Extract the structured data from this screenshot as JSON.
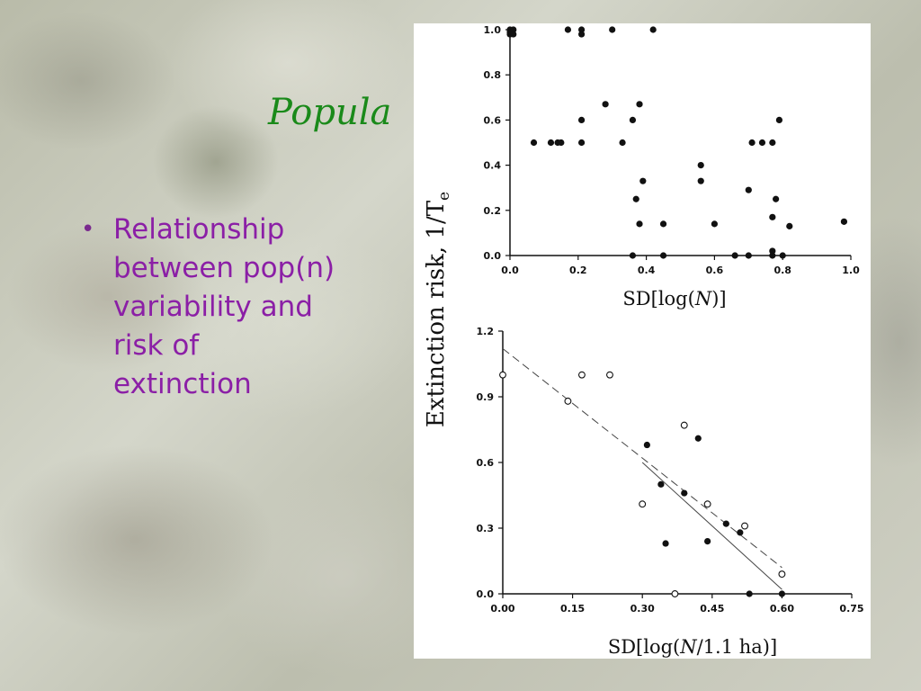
{
  "slide": {
    "title": "Popula",
    "bullet": [
      "Relationship",
      "between pop(n)",
      "variability and",
      "risk of",
      "extinction"
    ],
    "bullet_glyph": "•",
    "title_color": "#1a8a1a",
    "text_color": "#8b1fa6"
  },
  "chart_data": [
    {
      "type": "scatter",
      "xlabel": "SD[log(N)]",
      "ylabel": "Extinction risk, 1/Te",
      "xlim": [
        0.0,
        1.0
      ],
      "ylim": [
        0.0,
        1.0
      ],
      "xticks": [
        "0.0",
        "0.2",
        "0.4",
        "0.6",
        "0.8",
        "1.0"
      ],
      "yticks": [
        "0.0",
        "0.2",
        "0.4",
        "0.6",
        "0.8",
        "1.0"
      ],
      "series": [
        {
          "marker": "filled",
          "points": [
            [
              0.0,
              1.0
            ],
            [
              0.0,
              0.99
            ],
            [
              0.0,
              0.98
            ],
            [
              0.01,
              1.0
            ],
            [
              0.01,
              0.98
            ],
            [
              0.17,
              1.0
            ],
            [
              0.21,
              1.0
            ],
            [
              0.21,
              0.98
            ],
            [
              0.3,
              1.0
            ],
            [
              0.42,
              1.0
            ],
            [
              0.07,
              0.5
            ],
            [
              0.12,
              0.5
            ],
            [
              0.14,
              0.5
            ],
            [
              0.15,
              0.5
            ],
            [
              0.21,
              0.5
            ],
            [
              0.33,
              0.5
            ],
            [
              0.21,
              0.6
            ],
            [
              0.36,
              0.6
            ],
            [
              0.28,
              0.67
            ],
            [
              0.38,
              0.67
            ],
            [
              0.39,
              0.33
            ],
            [
              0.37,
              0.25
            ],
            [
              0.38,
              0.14
            ],
            [
              0.45,
              0.14
            ],
            [
              0.36,
              0.0
            ],
            [
              0.45,
              0.0
            ],
            [
              0.56,
              0.4
            ],
            [
              0.56,
              0.33
            ],
            [
              0.6,
              0.14
            ],
            [
              0.66,
              0.0
            ],
            [
              0.7,
              0.0
            ],
            [
              0.7,
              0.29
            ],
            [
              0.71,
              0.5
            ],
            [
              0.74,
              0.5
            ],
            [
              0.77,
              0.5
            ],
            [
              0.79,
              0.6
            ],
            [
              0.78,
              0.25
            ],
            [
              0.77,
              0.17
            ],
            [
              0.82,
              0.13
            ],
            [
              0.77,
              0.0
            ],
            [
              0.77,
              0.02
            ],
            [
              0.8,
              0.0
            ],
            [
              0.98,
              0.15
            ]
          ]
        }
      ]
    },
    {
      "type": "scatter",
      "xlabel": "SD[log(N/1.1 ha)]",
      "xlim": [
        0.0,
        0.75
      ],
      "ylim": [
        0.0,
        1.2
      ],
      "xticks": [
        "0.00",
        "0.15",
        "0.30",
        "0.45",
        "0.60",
        "0.75"
      ],
      "yticks": [
        "0.0",
        "0.3",
        "0.6",
        "0.9",
        "1.2"
      ],
      "series": [
        {
          "marker": "open",
          "points": [
            [
              0.0,
              1.0
            ],
            [
              0.14,
              0.88
            ],
            [
              0.17,
              1.0
            ],
            [
              0.23,
              1.0
            ],
            [
              0.3,
              0.41
            ],
            [
              0.37,
              0.0
            ],
            [
              0.39,
              0.77
            ],
            [
              0.44,
              0.41
            ],
            [
              0.52,
              0.31
            ],
            [
              0.6,
              0.09
            ]
          ]
        },
        {
          "marker": "filled",
          "points": [
            [
              0.31,
              0.68
            ],
            [
              0.34,
              0.5
            ],
            [
              0.35,
              0.23
            ],
            [
              0.39,
              0.46
            ],
            [
              0.42,
              0.71
            ],
            [
              0.48,
              0.32
            ],
            [
              0.44,
              0.24
            ],
            [
              0.51,
              0.28
            ],
            [
              0.53,
              0.0
            ],
            [
              0.6,
              0.0
            ]
          ]
        }
      ],
      "lines": [
        {
          "style": "dashed",
          "from": [
            0.0,
            1.12
          ],
          "to": [
            0.6,
            0.12
          ]
        },
        {
          "style": "solid",
          "from": [
            0.3,
            0.6
          ],
          "to": [
            0.6,
            0.02
          ]
        }
      ]
    }
  ]
}
